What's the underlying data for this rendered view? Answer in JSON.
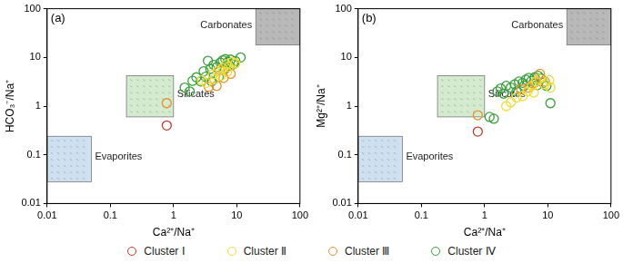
{
  "chart_data": [
    {
      "type": "scatter",
      "title": "(a)",
      "x_label": "Ca²⁺/Na⁺",
      "y_label": "HCO₃⁻/Na⁺",
      "log": true,
      "grid": false,
      "legend": "bottom",
      "marker": "circle",
      "xlim": [
        0.01,
        100
      ],
      "ylim": [
        0.01,
        100
      ],
      "xticks": [
        0.01,
        0.1,
        1,
        10,
        100
      ],
      "yticks": [
        0.01,
        0.1,
        1,
        10,
        100
      ],
      "regions": [
        {
          "label": "Carbonates",
          "x": [
            20,
            100
          ],
          "y": [
            18,
            100
          ],
          "color": "#b8b8b8"
        },
        {
          "label": "Silicates",
          "x": [
            0.18,
            1
          ],
          "y": [
            0.6,
            4.2
          ],
          "color": "#d5ebcf"
        },
        {
          "label": "Evaporites",
          "x": [
            0.01,
            0.05
          ],
          "y": [
            0.028,
            0.24
          ],
          "color": "#cfe0f0"
        }
      ],
      "series": [
        {
          "name": "Cluster Ⅰ",
          "color": "#c0392b",
          "x": [
            0.78
          ],
          "values": [
            0.4
          ]
        },
        {
          "name": "Cluster Ⅱ",
          "color": "#f0dc3c",
          "x": [
            2.8,
            3.3,
            4.2,
            5.0,
            6.0,
            6.8,
            7.5,
            8.5,
            9.5,
            4.5,
            5.6,
            7.0
          ],
          "values": [
            3.4,
            3.0,
            4.5,
            5.2,
            6.0,
            7.2,
            6.4,
            8.0,
            7.5,
            3.6,
            4.2,
            5.0
          ]
        },
        {
          "name": "Cluster Ⅲ",
          "color": "#e8902a",
          "x": [
            0.78,
            3.6,
            4.8,
            6.2,
            5.4,
            8.0
          ],
          "values": [
            1.15,
            2.5,
            2.6,
            3.8,
            5.5,
            4.6
          ]
        },
        {
          "name": "Cluster Ⅳ",
          "color": "#3a9e3a",
          "x": [
            1.5,
            1.8,
            2.0,
            2.3,
            2.7,
            3.2,
            3.0,
            3.8,
            4.3,
            4.8,
            5.5,
            6.0,
            6.6,
            7.2,
            8.0,
            8.8,
            9.5,
            11.5,
            4.0,
            5.2,
            6.5,
            7.8,
            3.5
          ],
          "values": [
            2.4,
            2.0,
            3.3,
            3.9,
            3.2,
            4.0,
            5.2,
            5.8,
            7.0,
            6.3,
            7.8,
            8.7,
            9.2,
            8.0,
            9.0,
            7.2,
            8.4,
            10.0,
            3.2,
            4.0,
            5.8,
            6.5,
            8.5
          ]
        }
      ]
    },
    {
      "type": "scatter",
      "title": "(b)",
      "x_label": "Ca²⁺/Na⁺",
      "y_label": "Mg²⁺/Na⁺",
      "log": true,
      "grid": false,
      "marker": "circle",
      "xlim": [
        0.01,
        100
      ],
      "ylim": [
        0.01,
        100
      ],
      "xticks": [
        0.01,
        0.1,
        1,
        10,
        100
      ],
      "yticks": [
        0.01,
        0.1,
        1,
        10,
        100
      ],
      "regions": [
        {
          "label": "Carbonates",
          "x": [
            20,
            100
          ],
          "y": [
            18,
            100
          ],
          "color": "#b8b8b8"
        },
        {
          "label": "Silicates",
          "x": [
            0.18,
            1
          ],
          "y": [
            0.6,
            4.2
          ],
          "color": "#d5ebcf"
        },
        {
          "label": "Evaporites",
          "x": [
            0.01,
            0.05
          ],
          "y": [
            0.028,
            0.24
          ],
          "color": "#cfe0f0"
        }
      ],
      "series": [
        {
          "name": "Cluster Ⅰ",
          "color": "#c0392b",
          "x": [
            0.78
          ],
          "values": [
            0.3
          ]
        },
        {
          "name": "Cluster Ⅱ",
          "color": "#f0dc3c",
          "x": [
            2.2,
            2.6,
            3.2,
            4.0,
            4.8,
            5.6,
            6.5,
            7.5,
            9.0,
            10.5,
            11.0,
            6.0
          ],
          "values": [
            1.0,
            1.2,
            1.5,
            1.6,
            2.0,
            2.6,
            3.2,
            3.6,
            2.8,
            3.4,
            2.4,
            1.9
          ]
        },
        {
          "name": "Cluster Ⅲ",
          "color": "#e8902a",
          "x": [
            0.78,
            3.8,
            5.0,
            6.2,
            7.5,
            9.0
          ],
          "values": [
            0.65,
            2.2,
            2.4,
            3.0,
            4.6,
            3.2
          ]
        },
        {
          "name": "Cluster Ⅳ",
          "color": "#3a9e3a",
          "x": [
            1.2,
            1.4,
            1.6,
            1.8,
            2.2,
            2.6,
            3.0,
            3.5,
            4.0,
            4.5,
            5.0,
            5.5,
            6.2,
            7.0,
            7.8,
            8.5,
            9.5,
            11.0,
            3.2,
            4.2,
            5.8,
            2.0,
            6.8
          ],
          "values": [
            0.6,
            0.55,
            2.0,
            2.3,
            2.6,
            2.4,
            2.8,
            3.2,
            3.0,
            3.5,
            3.8,
            3.3,
            3.9,
            4.2,
            3.7,
            3.0,
            2.6,
            1.15,
            2.0,
            2.6,
            2.9,
            1.8,
            2.7
          ]
        }
      ]
    }
  ]
}
